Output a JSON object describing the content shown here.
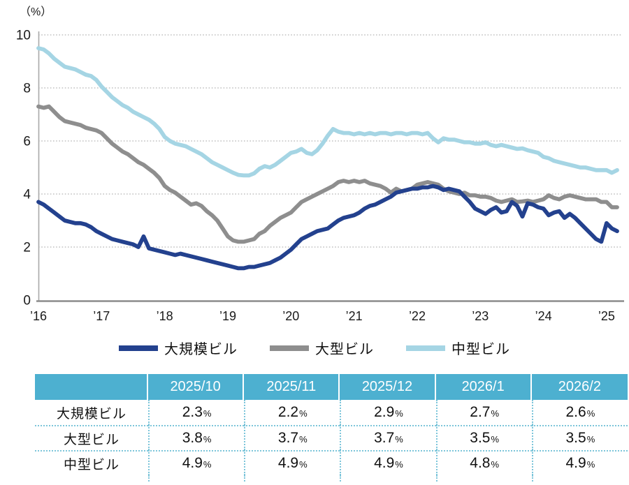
{
  "chart": {
    "unit_label": "（%）"
  },
  "chart_data": {
    "type": "line",
    "title": "",
    "unit": "%",
    "x_start": "2016-01",
    "x_frequency": "monthly",
    "ylim": [
      0,
      10
    ],
    "y_ticks": [
      0,
      2,
      4,
      6,
      8,
      10
    ],
    "y_gridlines": [
      2,
      4,
      6,
      8,
      10
    ],
    "x_tick_labels": [
      "’16",
      "’17",
      "’18",
      "’19",
      "’20",
      "’21",
      "’22",
      "’23",
      "’24",
      "’25"
    ],
    "grid_on": true,
    "grid_color": "#b3b3b3",
    "axis_color": "#9a9a9a",
    "legend_position": "bottom",
    "series": [
      {
        "name": "大規模ビル",
        "key": "large-scale-building",
        "color": "#23418e",
        "values": [
          3.7,
          3.6,
          3.45,
          3.3,
          3.15,
          3.0,
          2.95,
          2.9,
          2.9,
          2.85,
          2.75,
          2.6,
          2.5,
          2.4,
          2.3,
          2.25,
          2.2,
          2.15,
          2.1,
          2.0,
          2.4,
          1.95,
          1.9,
          1.85,
          1.8,
          1.75,
          1.7,
          1.75,
          1.7,
          1.65,
          1.6,
          1.55,
          1.5,
          1.45,
          1.4,
          1.35,
          1.3,
          1.25,
          1.2,
          1.2,
          1.25,
          1.25,
          1.3,
          1.35,
          1.4,
          1.5,
          1.6,
          1.75,
          1.9,
          2.1,
          2.3,
          2.4,
          2.5,
          2.6,
          2.65,
          2.7,
          2.85,
          3.0,
          3.1,
          3.15,
          3.2,
          3.3,
          3.45,
          3.55,
          3.6,
          3.7,
          3.8,
          3.9,
          4.05,
          4.1,
          4.15,
          4.2,
          4.2,
          4.25,
          4.25,
          4.3,
          4.25,
          4.15,
          4.2,
          4.15,
          4.1,
          3.9,
          3.7,
          3.45,
          3.35,
          3.25,
          3.4,
          3.5,
          3.3,
          3.35,
          3.7,
          3.55,
          3.15,
          3.65,
          3.6,
          3.5,
          3.45,
          3.2,
          3.3,
          3.35,
          3.1,
          3.25,
          3.1,
          2.9,
          2.7,
          2.5,
          2.3,
          2.2,
          2.9,
          2.7,
          2.6
        ]
      },
      {
        "name": "大型ビル",
        "key": "large-building",
        "color": "#8e8e8e",
        "values": [
          7.3,
          7.25,
          7.3,
          7.1,
          6.9,
          6.75,
          6.7,
          6.65,
          6.6,
          6.5,
          6.45,
          6.4,
          6.3,
          6.1,
          5.9,
          5.75,
          5.6,
          5.5,
          5.35,
          5.2,
          5.1,
          4.95,
          4.8,
          4.6,
          4.3,
          4.15,
          4.05,
          3.9,
          3.75,
          3.6,
          3.65,
          3.55,
          3.35,
          3.2,
          3.0,
          2.7,
          2.4,
          2.25,
          2.2,
          2.2,
          2.25,
          2.3,
          2.5,
          2.6,
          2.8,
          2.95,
          3.1,
          3.2,
          3.3,
          3.5,
          3.7,
          3.8,
          3.9,
          4.0,
          4.1,
          4.2,
          4.3,
          4.45,
          4.5,
          4.45,
          4.5,
          4.45,
          4.5,
          4.4,
          4.35,
          4.3,
          4.2,
          4.05,
          4.2,
          4.1,
          4.15,
          4.2,
          4.35,
          4.4,
          4.45,
          4.4,
          4.35,
          4.2,
          4.1,
          4.05,
          4.0,
          4.05,
          3.95,
          3.95,
          3.9,
          3.9,
          3.85,
          3.75,
          3.7,
          3.75,
          3.8,
          3.7,
          3.72,
          3.75,
          3.7,
          3.75,
          3.8,
          3.95,
          3.85,
          3.8,
          3.9,
          3.95,
          3.9,
          3.85,
          3.8,
          3.8,
          3.8,
          3.7,
          3.7,
          3.5,
          3.5
        ]
      },
      {
        "name": "中型ビル",
        "key": "medium-building",
        "color": "#a5d5e4",
        "values": [
          9.5,
          9.45,
          9.3,
          9.1,
          8.95,
          8.8,
          8.75,
          8.7,
          8.6,
          8.5,
          8.45,
          8.3,
          8.05,
          7.85,
          7.65,
          7.5,
          7.35,
          7.25,
          7.1,
          7.0,
          6.9,
          6.8,
          6.65,
          6.45,
          6.15,
          6.0,
          5.9,
          5.85,
          5.8,
          5.7,
          5.6,
          5.5,
          5.35,
          5.2,
          5.1,
          5.0,
          4.9,
          4.8,
          4.72,
          4.7,
          4.7,
          4.78,
          4.95,
          5.05,
          5.0,
          5.1,
          5.25,
          5.4,
          5.55,
          5.6,
          5.7,
          5.55,
          5.5,
          5.65,
          5.9,
          6.2,
          6.45,
          6.35,
          6.3,
          6.3,
          6.25,
          6.3,
          6.25,
          6.3,
          6.25,
          6.3,
          6.3,
          6.25,
          6.3,
          6.3,
          6.25,
          6.3,
          6.3,
          6.25,
          6.3,
          6.1,
          5.95,
          6.1,
          6.05,
          6.05,
          6.0,
          5.95,
          5.95,
          5.9,
          5.9,
          5.95,
          5.85,
          5.8,
          5.85,
          5.8,
          5.75,
          5.7,
          5.72,
          5.65,
          5.6,
          5.55,
          5.4,
          5.35,
          5.25,
          5.2,
          5.15,
          5.1,
          5.05,
          5.0,
          5.0,
          4.95,
          4.9,
          4.9,
          4.9,
          4.8,
          4.9
        ]
      }
    ]
  },
  "table": {
    "header": [
      "",
      "2025/10",
      "2025/11",
      "2025/12",
      "2026/1",
      "2026/2"
    ],
    "rows": [
      {
        "label": "大規模ビル",
        "values": [
          "2.3",
          "2.2",
          "2.9",
          "2.7",
          "2.6"
        ]
      },
      {
        "label": "大型ビル",
        "values": [
          "3.8",
          "3.7",
          "3.7",
          "3.5",
          "3.5"
        ]
      },
      {
        "label": "中型ビル",
        "values": [
          "4.9",
          "4.9",
          "4.9",
          "4.8",
          "4.9"
        ]
      }
    ],
    "percent_symbol": "%",
    "header_bg": "#4db0d0",
    "border_color": "#7cc5da"
  }
}
